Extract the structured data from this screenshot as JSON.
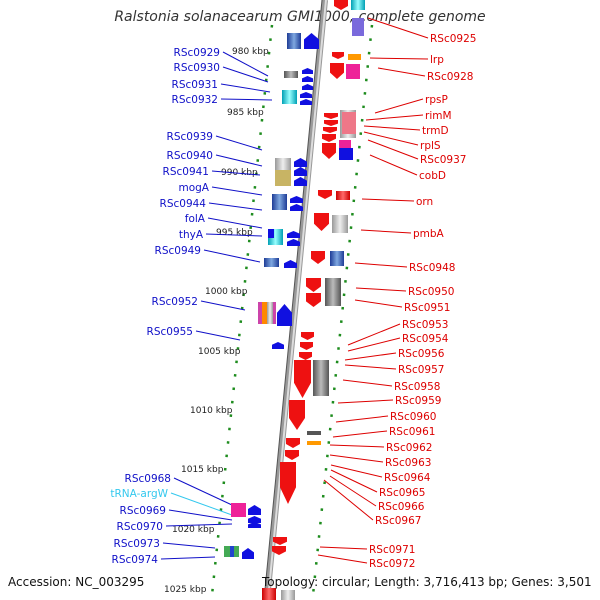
{
  "title": "Ralstonia solanacearum GMI1000, complete genome",
  "accession": "Accession: NC_003295",
  "topology": "Topology: circular; Length: 3,716,413 bp; Genes: 3,501",
  "colors": {
    "left_label": "#1010c8",
    "right_label": "#dd0000",
    "trna_label": "#33c8ee",
    "tick_dot": "#1e8c1e",
    "backbone": "#8c8c8c"
  },
  "kbp_ticks": [
    "980 kbp",
    "985 kbp",
    "990 kbp",
    "995 kbp",
    "1000 kbp",
    "1005 kbp",
    "1010 kbp",
    "1015 kbp",
    "1020 kbp",
    "1025 kbp"
  ],
  "left_genes": [
    "RSc0929",
    "RSc0930",
    "RSc0931",
    "RSc0932",
    "RSc0939",
    "RSc0940",
    "RSc0941",
    "mogA",
    "RSc0944",
    "folA",
    "thyA",
    "RSc0949",
    "RSc0952",
    "RSc0955",
    "RSc0968",
    "tRNA-argW",
    "RSc0969",
    "RSc0970",
    "RSc0973",
    "RSc0974"
  ],
  "right_genes": [
    "RSc0925",
    "lrp",
    "RSc0928",
    "rpsP",
    "rimM",
    "trmD",
    "rplS",
    "RSc0937",
    "cobD",
    "orn",
    "pmbA",
    "RSc0948",
    "RSc0950",
    "RSc0951",
    "RSc0953",
    "RSc0954",
    "RSc0956",
    "RSc0957",
    "RSc0958",
    "RSc0959",
    "RSc0960",
    "RSc0961",
    "RSc0962",
    "RSc0963",
    "RSc0964",
    "RSc0965",
    "RSc0966",
    "RSc0967",
    "RSc0971",
    "RSc0972"
  ]
}
